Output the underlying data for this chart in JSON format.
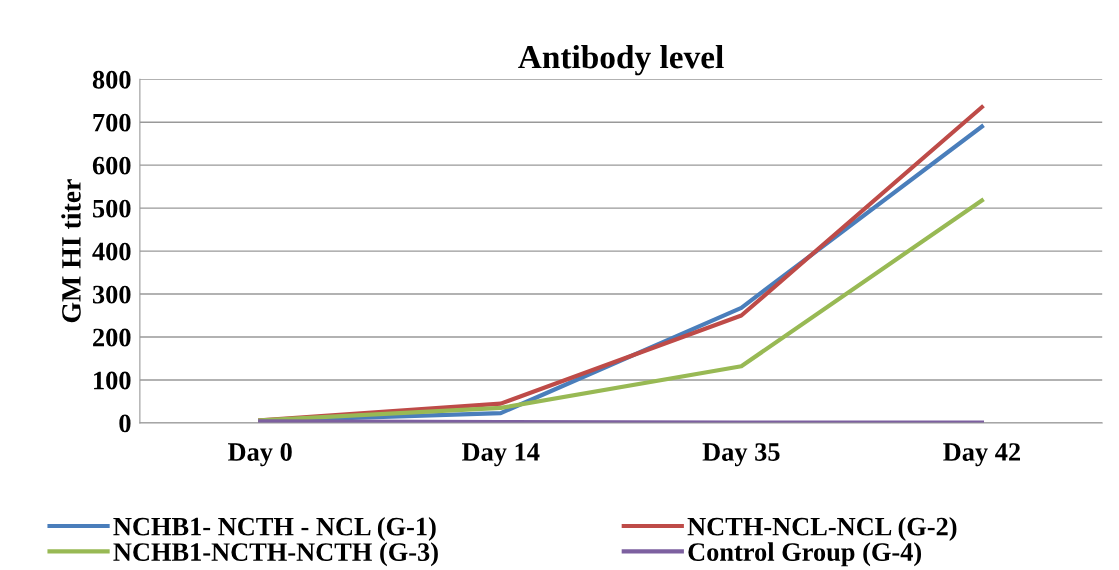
{
  "chart_data": {
    "type": "line",
    "title": "Antibody level",
    "ylabel": "GM HI titer",
    "categories": [
      "Day 0",
      "Day 14",
      "Day 35",
      "Day 42"
    ],
    "series": [
      {
        "name": "NCHB1- NCTH - NCL (G-1)",
        "color": "#4a7ebb",
        "values": [
          5,
          23,
          268,
          690
        ]
      },
      {
        "name": "NCTH-NCL-NCL (G-2)",
        "color": "#be4b48",
        "values": [
          6,
          45,
          250,
          735
        ]
      },
      {
        "name": "NCHB1-NCTH-NCTH (G-3)",
        "color": "#98b954",
        "values": [
          6,
          35,
          132,
          518
        ]
      },
      {
        "name": "Control Group (G-4)",
        "color": "#7d60a0",
        "values": [
          4,
          2,
          1,
          1
        ]
      }
    ],
    "ylim": [
      0,
      800
    ],
    "yticks": [
      0,
      100,
      200,
      300,
      400,
      500,
      600,
      700,
      800
    ],
    "grid": "y",
    "legend": "bottom",
    "marker": "none",
    "line_style": "solid"
  }
}
